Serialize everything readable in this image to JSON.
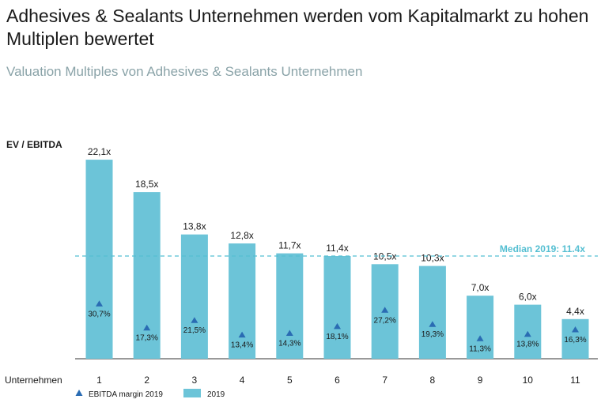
{
  "title": "Adhesives & Sealants Unternehmen werden vom Kapitalmarkt zu hohen Multiplen bewertet",
  "subtitle": "Valuation Multiples von Adhesives & Sealants Unternehmen",
  "chart_data": {
    "type": "bar",
    "ylabel": "EV / EBITDA",
    "xlabel": "Unternehmen",
    "categories": [
      "1",
      "2",
      "3",
      "4",
      "5",
      "6",
      "7",
      "8",
      "9",
      "10",
      "11"
    ],
    "series": [
      {
        "name": "2019",
        "values": [
          22.1,
          18.5,
          13.8,
          12.8,
          11.7,
          11.4,
          10.5,
          10.3,
          7.0,
          6.0,
          4.4
        ],
        "labels": [
          "22,1x",
          "18,5x",
          "13,8x",
          "12,8x",
          "11,7x",
          "11,4x",
          "10,5x",
          "10,3x",
          "7,0x",
          "6,0x",
          "4,4x"
        ],
        "color": "#6cc4d8"
      },
      {
        "name": "EBITDA margin 2019",
        "values": [
          30.7,
          17.3,
          21.5,
          13.4,
          14.3,
          18.1,
          27.2,
          19.3,
          11.3,
          13.8,
          16.3
        ],
        "labels": [
          "30,7%",
          "17,3%",
          "21,5%",
          "13,4%",
          "14,3%",
          "18,1%",
          "27,2%",
          "19,3%",
          "11,3%",
          "13,8%",
          "16,3%"
        ],
        "color": "#2a6cb3"
      }
    ],
    "median": {
      "value": 11.4,
      "label": "Median 2019: 11.4x",
      "color": "#55bfd2"
    },
    "legend": [
      {
        "name": "EBITDA margin 2019",
        "marker": "triangle"
      },
      {
        "name": "2019",
        "marker": "square"
      }
    ],
    "grid": false
  }
}
